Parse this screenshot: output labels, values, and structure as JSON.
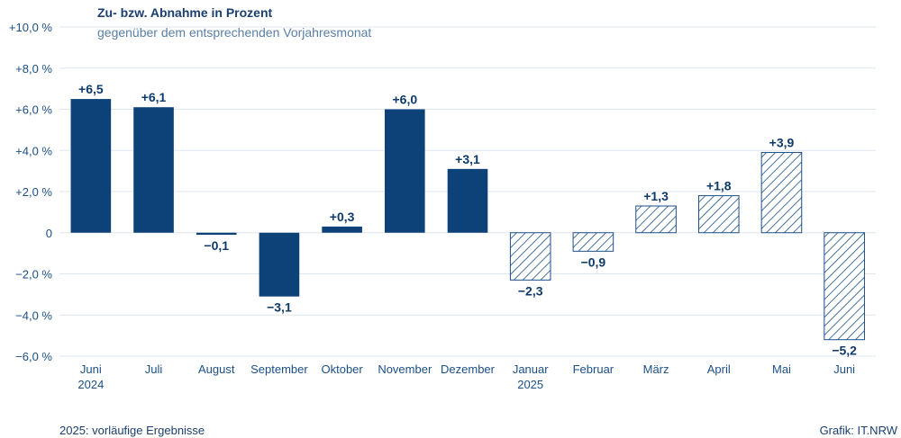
{
  "header": {
    "title": "Zu- bzw. Abnahme in Prozent",
    "subtitle": "gegenüber dem entsprechenden Vorjahresmonat"
  },
  "footer": {
    "note": "2025: vorläufige Ergebnisse",
    "credit": "Grafik: IT.NRW"
  },
  "colors": {
    "bar_final": "#0d4279",
    "bar_preliminary_stroke": "#1b4f87",
    "grid": "#dfe6ee",
    "axis_text": "#1b4f87",
    "value_text": "#0d3a6b"
  },
  "chart_data": {
    "type": "bar",
    "title": "Zu- bzw. Abnahme in Prozent",
    "subtitle": "gegenüber dem entsprechenden Vorjahresmonat",
    "categories": [
      "Juni 2024",
      "Juli",
      "August",
      "September",
      "Oktober",
      "November",
      "Dezember",
      "Januar 2025",
      "Februar",
      "März",
      "April",
      "Mai",
      "Juni"
    ],
    "category_lines": [
      [
        "Juni",
        "2024"
      ],
      [
        "Juli"
      ],
      [
        "August"
      ],
      [
        "September"
      ],
      [
        "Oktober"
      ],
      [
        "November"
      ],
      [
        "Dezember"
      ],
      [
        "Januar",
        "2025"
      ],
      [
        "Februar"
      ],
      [
        "März"
      ],
      [
        "April"
      ],
      [
        "Mai"
      ],
      [
        "Juni"
      ]
    ],
    "values": [
      6.5,
      6.1,
      -0.1,
      -3.1,
      0.3,
      6.0,
      3.1,
      -2.3,
      -0.9,
      1.3,
      1.8,
      3.9,
      -5.2
    ],
    "value_labels": [
      "+6,5",
      "+6,1",
      "−0,1",
      "−3,1",
      "+0,3",
      "+6,0",
      "+3,1",
      "−2,3",
      "−0,9",
      "+1,3",
      "+1,8",
      "+3,9",
      "−5,2"
    ],
    "preliminary": [
      false,
      false,
      false,
      false,
      false,
      false,
      false,
      true,
      true,
      true,
      true,
      true,
      true
    ],
    "ylim": [
      -6,
      10
    ],
    "yticks": [
      10,
      8,
      6,
      4,
      2,
      0,
      -2,
      -4,
      -6
    ],
    "ytick_labels": [
      "+10,0 %",
      "+8,0 %",
      "+6,0 %",
      "+4,0 %",
      "+2,0 %",
      "0",
      "−2,0 %",
      "−4,0 %",
      "−6,0 %"
    ],
    "grid": true,
    "legend": "none"
  }
}
